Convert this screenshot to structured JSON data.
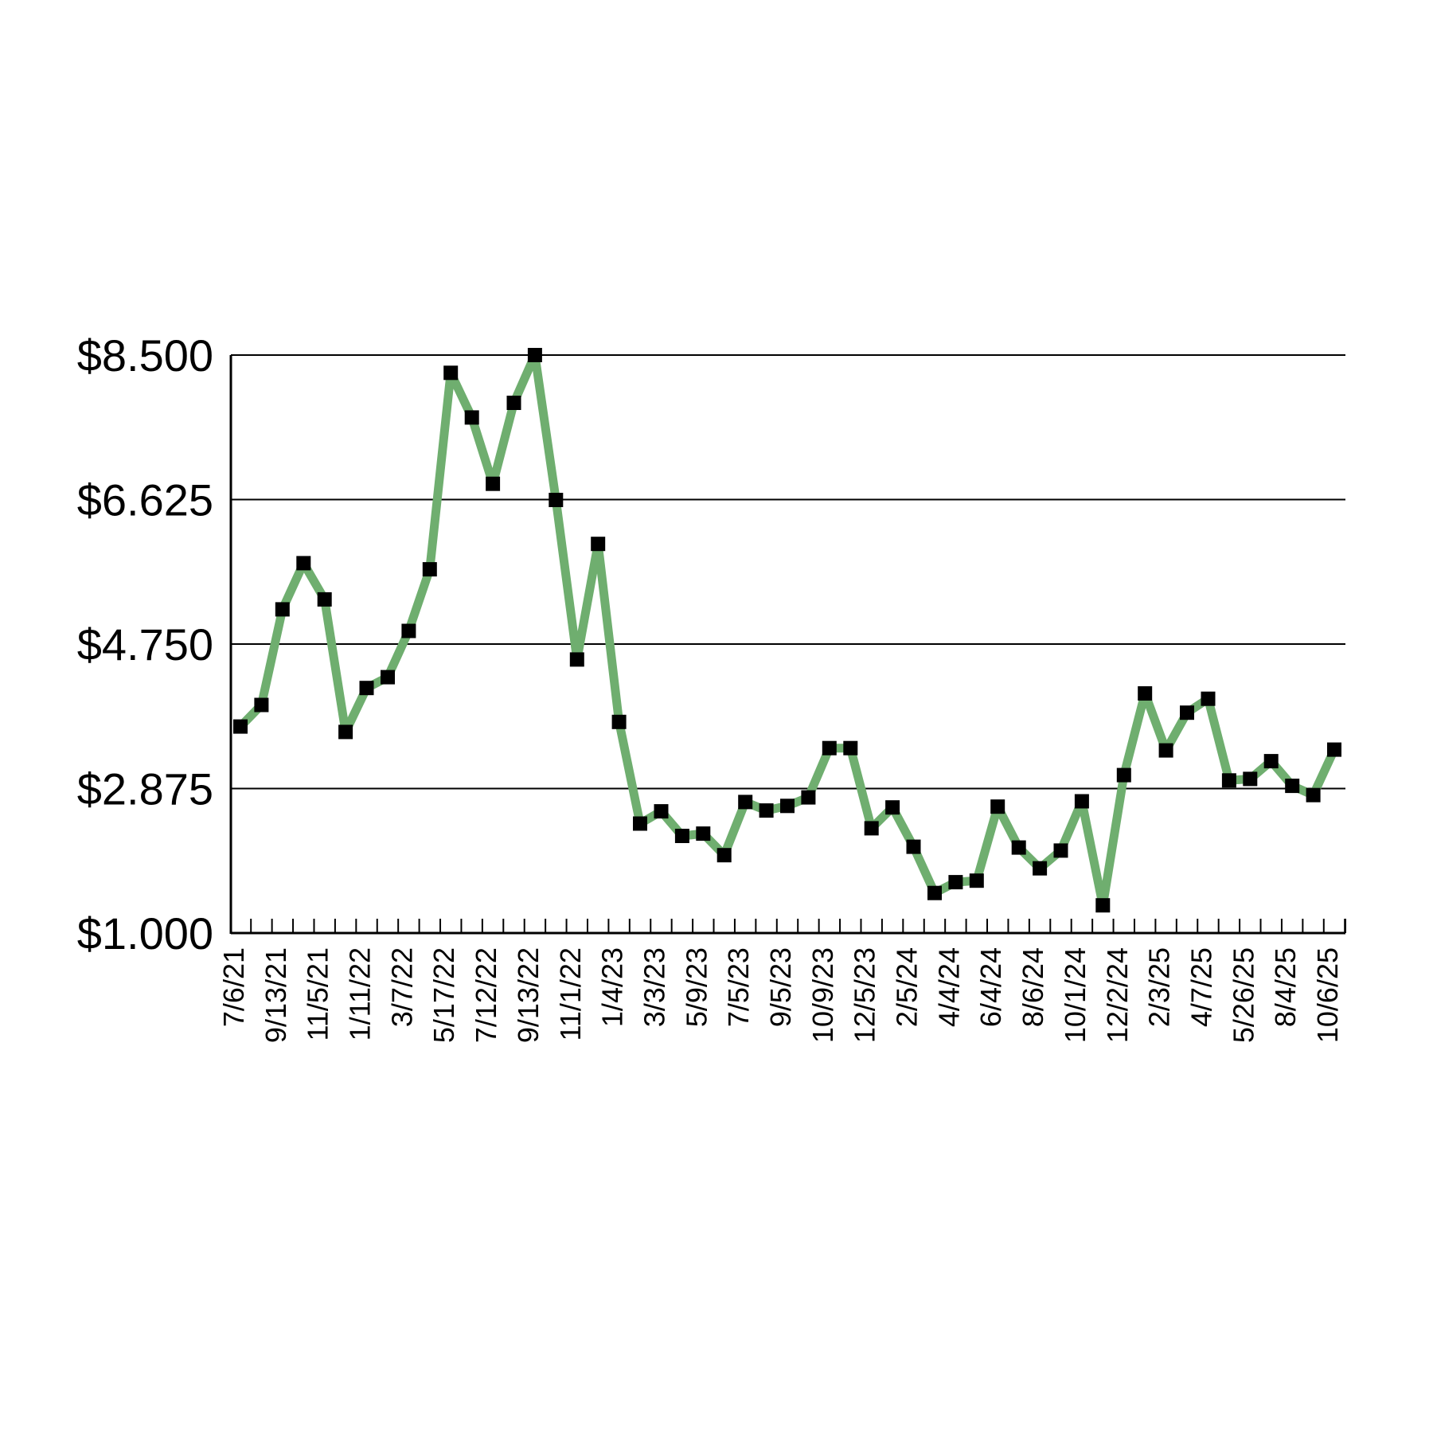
{
  "chart_data": {
    "type": "line",
    "title": "",
    "xlabel": "",
    "ylabel": "",
    "ylim": [
      1.0,
      8.5
    ],
    "y_ticks": [
      1.0,
      2.875,
      4.75,
      6.625,
      8.5
    ],
    "y_tick_labels": [
      "$1.000",
      "$2.875",
      "$4.750",
      "$6.625",
      "$8.500"
    ],
    "grid": "horizontal",
    "colors": {
      "line": "#6fae6f",
      "marker": "#000000",
      "grid": "#000000",
      "axis": "#000000"
    },
    "x_tick_labels": [
      "7/6/21",
      "9/13/21",
      "11/5/21",
      "1/11/22",
      "3/7/22",
      "5/17/22",
      "7/12/22",
      "9/13/22",
      "11/1/22",
      "1/4/23",
      "3/3/23",
      "5/9/23",
      "7/5/23",
      "9/5/23",
      "10/9/23",
      "12/5/23",
      "2/5/24",
      "4/4/24",
      "6/4/24",
      "8/6/24",
      "10/1/24",
      "12/2/24",
      "2/3/25",
      "4/7/25",
      "5/26/25",
      "8/4/25",
      "10/6/25"
    ],
    "series": [
      {
        "values": [
          3.68,
          3.96,
          5.2,
          5.8,
          5.33,
          3.61,
          4.18,
          4.32,
          4.92,
          5.72,
          8.27,
          7.69,
          6.83,
          7.88,
          8.5,
          6.62,
          4.55,
          6.05,
          3.74,
          2.42,
          2.58,
          2.26,
          2.29,
          2.01,
          2.7,
          2.59,
          2.65,
          2.76,
          3.4,
          3.4,
          2.36,
          2.63,
          2.12,
          1.52,
          1.66,
          1.68,
          2.64,
          2.11,
          1.84,
          2.07,
          2.71,
          1.36,
          3.05,
          4.11,
          3.37,
          3.86,
          4.04,
          2.98,
          3.0,
          3.23,
          2.91,
          2.79,
          3.38
        ]
      }
    ]
  }
}
